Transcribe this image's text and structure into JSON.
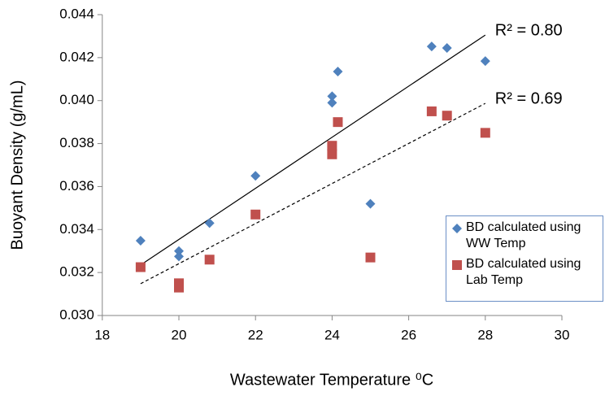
{
  "chart_data": {
    "type": "scatter",
    "x_label": "Wastewater Temperature ⁰C",
    "y_label": "Buoyant Density (g/mL)",
    "xlim": [
      18,
      30
    ],
    "xticks": [
      18,
      20,
      22,
      24,
      26,
      28,
      30
    ],
    "ylim": [
      0.03,
      0.044
    ],
    "yticks": [
      {
        "value": 0.03,
        "label": "0.030"
      },
      0.032,
      0.034,
      0.036,
      0.038,
      {
        "value": 0.04,
        "label": "0.040"
      },
      0.042,
      0.044
    ],
    "grid": false,
    "legend": "right",
    "series": [
      {
        "name": "BD calculated using WW Temp",
        "color": "#4f81bd",
        "marker": "diamond",
        "x": [
          19,
          20,
          20,
          20.8,
          22,
          24,
          24,
          24.15,
          25,
          26.6,
          27,
          28
        ],
        "values": [
          0.03348,
          0.033,
          0.03275,
          0.0343,
          0.0365,
          0.0402,
          0.0399,
          0.04135,
          0.0352,
          0.04252,
          0.04245,
          0.04184
        ]
      },
      {
        "name": "BD calculated using Lab Temp",
        "color": "#c0504d",
        "marker": "square",
        "x": [
          19,
          20,
          20,
          20.8,
          22,
          24,
          24,
          24.15,
          25,
          26.6,
          27,
          28
        ],
        "values": [
          0.03225,
          0.0315,
          0.0313,
          0.0326,
          0.0347,
          0.0379,
          0.0375,
          0.039,
          0.0327,
          0.0395,
          0.0393,
          0.0385
        ]
      }
    ],
    "trendlines": [
      {
        "label": "R² = 0.80",
        "style": "solid",
        "color": "#000000",
        "x": [
          19,
          28
        ],
        "values": [
          0.03235,
          0.04305
        ]
      },
      {
        "label": "R² = 0.69",
        "style": "dashed",
        "color": "#000000",
        "x": [
          19,
          28
        ],
        "values": [
          0.03148,
          0.03987
        ]
      }
    ]
  }
}
